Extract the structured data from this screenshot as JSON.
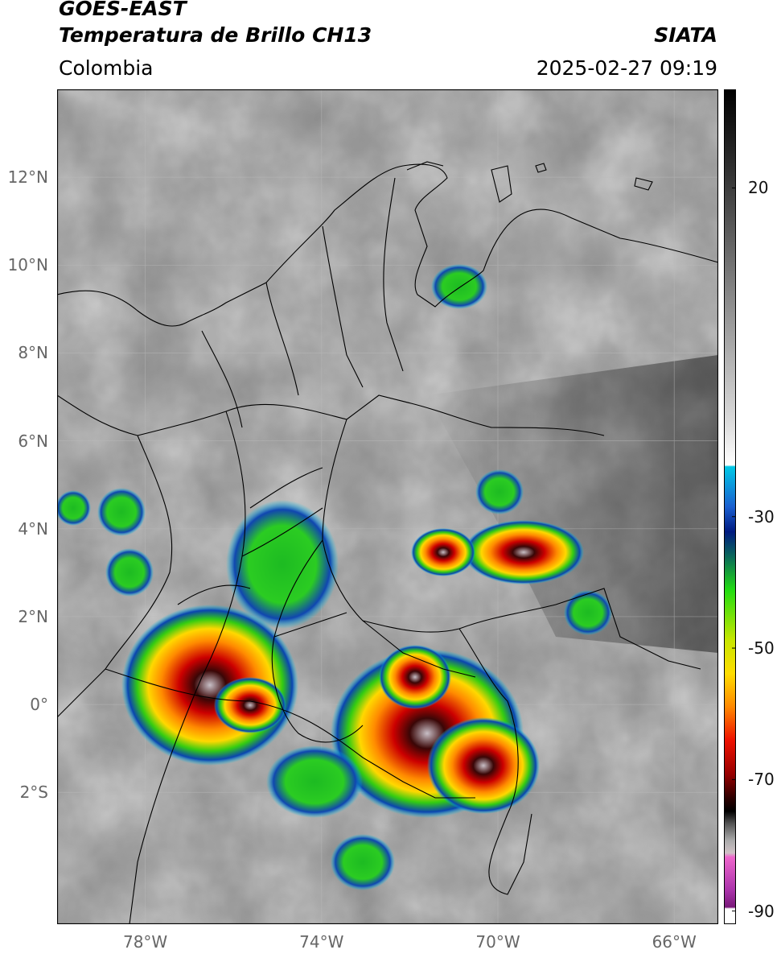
{
  "header": {
    "satellite": "GOES-EAST",
    "product": "Temperatura de Brillo CH13",
    "region": "Colombia",
    "source": "SIATA",
    "timestamp": "2025-02-27 09:19"
  },
  "map": {
    "lon_range": [
      -80,
      -65
    ],
    "lat_range": [
      -5,
      14
    ],
    "gridlines": true,
    "lat_ticks": [
      {
        "value": 12,
        "label": "12°N"
      },
      {
        "value": 10,
        "label": "10°N"
      },
      {
        "value": 8,
        "label": "8°N"
      },
      {
        "value": 6,
        "label": "6°N"
      },
      {
        "value": 4,
        "label": "4°N"
      },
      {
        "value": 2,
        "label": "2°N"
      },
      {
        "value": 0,
        "label": "0°"
      },
      {
        "value": -2,
        "label": "2°S"
      }
    ],
    "lon_ticks": [
      {
        "value": -78,
        "label": "78°W"
      },
      {
        "value": -74,
        "label": "74°W"
      },
      {
        "value": -70,
        "label": "70°W"
      },
      {
        "value": -66,
        "label": "66°W"
      }
    ]
  },
  "colorbar": {
    "range": [
      -92,
      35
    ],
    "ticks": [
      {
        "value": 20,
        "label": "20"
      },
      {
        "value": -30,
        "label": "-30"
      },
      {
        "value": -50,
        "label": "-50"
      },
      {
        "value": -70,
        "label": "-70"
      },
      {
        "value": -90,
        "label": "-90"
      }
    ],
    "colors": {
      "warm_dark": "#1a1a1a",
      "gray_mid": "#7f7f7f",
      "white": "#ffffff",
      "cyan": "#00c8e6",
      "blue": "#0033aa",
      "green": "#22cc11",
      "yellow": "#ffdd00",
      "orange": "#ff8800",
      "red": "#dd0000",
      "dark_red": "#550000",
      "black": "#000000",
      "magenta": "#cc44bb",
      "purple": "#7a1a7a"
    }
  }
}
